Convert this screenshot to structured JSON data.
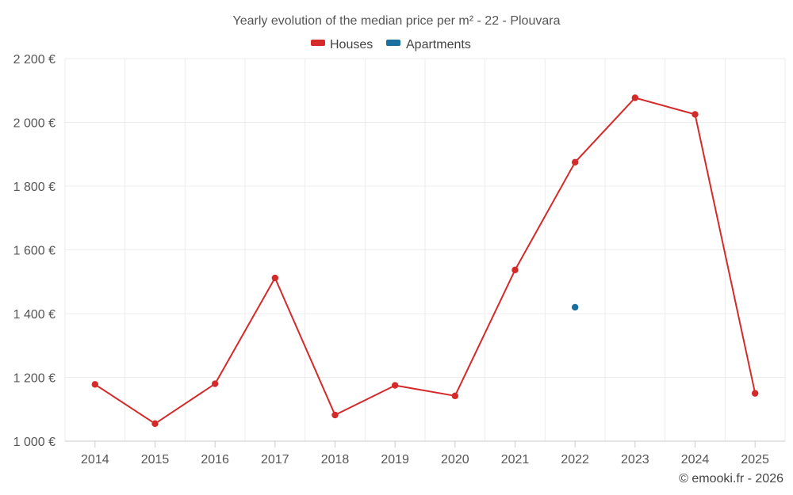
{
  "chart_data": {
    "type": "line",
    "title": "Yearly evolution of the median price per m² - 22 - Plouvara",
    "categories": [
      "2014",
      "2015",
      "2016",
      "2017",
      "2018",
      "2019",
      "2020",
      "2021",
      "2022",
      "2023",
      "2024",
      "2025"
    ],
    "series": [
      {
        "name": "Houses",
        "color": "#d42a2a",
        "values": [
          1178,
          1055,
          1180,
          1512,
          1082,
          1175,
          1142,
          1537,
          1875,
          2077,
          2025,
          1150
        ]
      },
      {
        "name": "Apartments",
        "color": "#1a6fa0",
        "values": [
          null,
          null,
          null,
          null,
          null,
          null,
          null,
          null,
          1420,
          null,
          null,
          null
        ]
      }
    ],
    "ylim": [
      1000,
      2200
    ],
    "yticks": [
      1000,
      1200,
      1400,
      1600,
      1800,
      2000,
      2200
    ],
    "ytick_labels": [
      "1 000 €",
      "1 200 €",
      "1 400 €",
      "1 600 €",
      "1 800 €",
      "2 000 €",
      "2 200 €"
    ],
    "xlabel": "",
    "ylabel": "",
    "grid": true,
    "legend_position": "top-center"
  },
  "credit": "© emooki.fr - 2026"
}
